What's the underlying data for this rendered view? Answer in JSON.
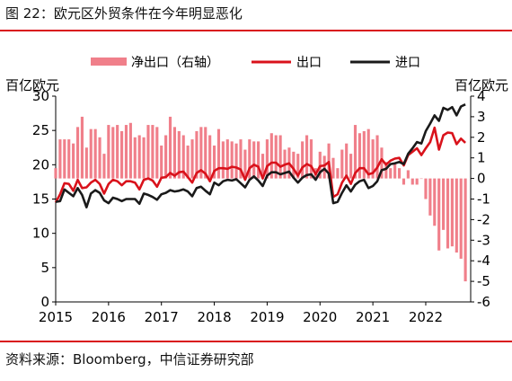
{
  "figure": {
    "title": "图 22：欧元区外贸条件在今年明显恶化",
    "source": "资料来源：Bloomberg，中信证券研究部"
  },
  "colors": {
    "net_export": "#f07f8a",
    "export": "#d9121b",
    "import": "#1a1a1a",
    "rule": "#d9121b"
  },
  "chart_data": {
    "type": "line",
    "left_unit": "百亿欧元",
    "right_unit": "百亿欧元",
    "ylim_left": [
      0,
      30
    ],
    "ylim_right": [
      -6,
      4
    ],
    "yticks_left": [
      0,
      5,
      10,
      15,
      20,
      25,
      30
    ],
    "yticks_right": [
      -6,
      -5,
      -4,
      -3,
      -2,
      -1,
      0,
      1,
      2,
      3,
      4
    ],
    "x_ticks": [
      "2015",
      "2016",
      "2017",
      "2018",
      "2019",
      "2020",
      "2021",
      "2022"
    ],
    "grid": false,
    "legend_position": "top",
    "legend": [
      "净出口（右轴）",
      "出口",
      "进口"
    ],
    "x_start_year": 2015,
    "series": [
      {
        "name": "出口",
        "axis": "left",
        "type": "line",
        "values": [
          14.5,
          15.7,
          17.3,
          17.2,
          16.2,
          17.8,
          16.6,
          16.7,
          17.4,
          17.8,
          17.2,
          15.8,
          17.2,
          17.8,
          17.6,
          17.0,
          17.6,
          17.6,
          17.4,
          16.4,
          17.8,
          18.0,
          17.7,
          16.8,
          18.1,
          18.2,
          18.8,
          18.4,
          18.9,
          19.0,
          18.2,
          17.4,
          18.8,
          19.2,
          18.7,
          17.6,
          19.1,
          19.5,
          19.5,
          19.4,
          19.7,
          19.6,
          19.3,
          17.8,
          19.5,
          20.0,
          19.7,
          18.0,
          19.8,
          20.3,
          20.3,
          19.7,
          20.0,
          20.2,
          19.4,
          18.4,
          19.6,
          20.1,
          19.8,
          18.6,
          19.8,
          19.9,
          20.4,
          15.3,
          15.7,
          17.4,
          18.4,
          17.2,
          18.8,
          19.5,
          19.5,
          18.6,
          18.8,
          19.6,
          20.8,
          20.0,
          20.6,
          20.9,
          21.0,
          19.9,
          21.4,
          21.9,
          22.4,
          21.4,
          22.4,
          23.3,
          25.4,
          22.2,
          24.3,
          24.7,
          24.6,
          23.0,
          23.8,
          23.2
        ]
      },
      {
        "name": "进口",
        "axis": "left",
        "type": "line",
        "values": [
          14.6,
          14.7,
          16.4,
          15.9,
          15.4,
          16.6,
          15.6,
          13.8,
          15.8,
          16.3,
          15.9,
          14.8,
          14.4,
          15.2,
          15.0,
          14.7,
          15.0,
          15.0,
          15.0,
          14.3,
          15.8,
          15.6,
          15.3,
          14.9,
          15.7,
          15.9,
          16.3,
          16.1,
          16.2,
          16.4,
          16.1,
          15.4,
          16.6,
          16.8,
          16.2,
          15.7,
          17.4,
          17.0,
          17.6,
          17.8,
          17.7,
          17.9,
          17.3,
          16.7,
          17.8,
          18.3,
          17.7,
          16.9,
          18.4,
          18.9,
          18.9,
          18.6,
          18.8,
          19.0,
          18.1,
          17.4,
          18.1,
          18.5,
          18.6,
          17.8,
          18.9,
          19.4,
          18.7,
          14.4,
          14.6,
          15.9,
          17.0,
          16.1,
          17.1,
          17.6,
          17.8,
          16.6,
          16.9,
          17.6,
          19.2,
          19.4,
          20.1,
          20.2,
          20.4,
          20.1,
          21.6,
          22.4,
          23.3,
          23.1,
          24.9,
          26.0,
          27.2,
          26.4,
          28.3,
          28.0,
          28.4,
          27.2,
          28.5,
          28.8
        ]
      },
      {
        "name": "净出口（右轴）",
        "axis": "right",
        "type": "bar",
        "values": [
          0.5,
          1.9,
          1.9,
          1.9,
          1.7,
          2.5,
          3.0,
          1.5,
          2.4,
          2.4,
          2.0,
          1.2,
          2.6,
          2.5,
          2.6,
          2.3,
          2.6,
          2.7,
          2.0,
          2.1,
          2.0,
          2.6,
          2.6,
          2.5,
          1.6,
          2.1,
          3.0,
          2.5,
          2.3,
          2.1,
          1.6,
          1.9,
          2.3,
          2.5,
          2.5,
          2.1,
          1.6,
          2.4,
          1.8,
          1.9,
          1.8,
          1.7,
          1.9,
          1.4,
          1.9,
          1.8,
          1.8,
          1.2,
          1.9,
          2.2,
          2.1,
          2.1,
          1.4,
          1.5,
          1.3,
          1.2,
          1.8,
          2.1,
          1.9,
          0.5,
          1.3,
          1.1,
          1.7,
          1.0,
          0.5,
          1.4,
          1.7,
          1.2,
          2.6,
          2.2,
          2.3,
          2.4,
          1.9,
          2.1,
          1.5,
          0.8,
          0.5,
          0.7,
          0.5,
          -0.3,
          0.4,
          -0.3,
          -0.3,
          0.0,
          -1.0,
          -1.8,
          -2.3,
          -3.5,
          -2.5,
          -3.4,
          -3.3,
          -3.6,
          -3.9,
          -5.0
        ]
      }
    ]
  }
}
